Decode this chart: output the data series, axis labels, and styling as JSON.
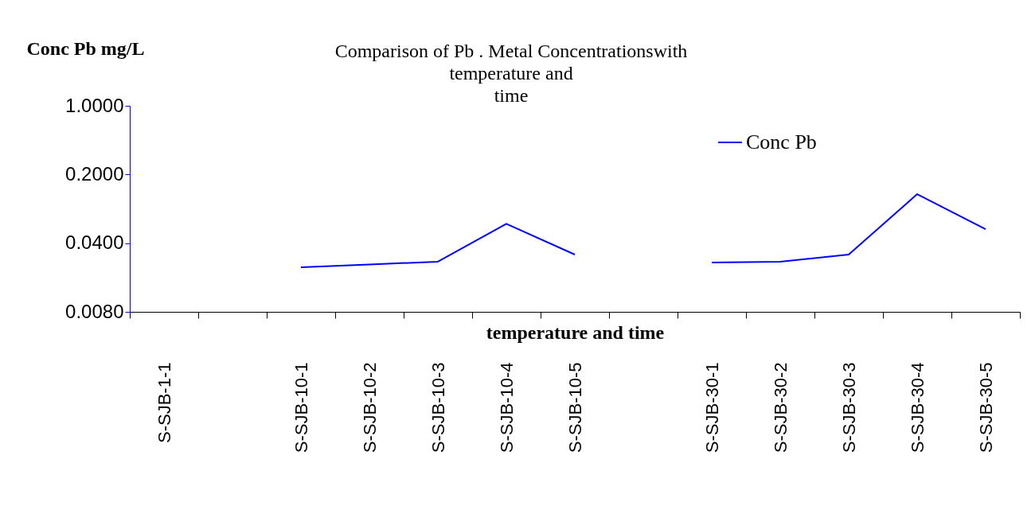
{
  "chart_data": {
    "type": "line",
    "title": "Comparison of Pb . Metal Concentrationswith\ntemperature and\ntime",
    "xlabel": "temperature and time",
    "ylabel": "Conc Pb mg/L",
    "categories": [
      "S-SJB-1-1",
      null,
      "S-SJB-10-1",
      "S-SJB-10-2",
      "S-SJB-10-3",
      "S-SJB-10-4",
      "S-SJB-10-5",
      null,
      "S-SJB-30-1",
      "S-SJB-30-2",
      "S-SJB-30-3",
      "S-SJB-30-4",
      "S-SJB-30-5"
    ],
    "series": [
      {
        "name": "Conc Pb",
        "color": "#0000ff",
        "values": [
          null,
          null,
          0.0227,
          0.0243,
          0.0259,
          0.063,
          0.0306,
          null,
          0.0254,
          0.0259,
          0.0306,
          0.126,
          0.0555
        ]
      }
    ],
    "log": "y",
    "ylim": [
      0.008,
      1.0
    ],
    "yticks": [
      {
        "value": 0.008,
        "label": "0.0080"
      },
      {
        "value": 0.04,
        "label": "0.0400"
      },
      {
        "value": 0.2,
        "label": "0.2000"
      },
      {
        "value": 1.0,
        "label": "1.0000"
      }
    ],
    "grid": false,
    "legend": "top right",
    "marker": "none",
    "line_style": "solid"
  }
}
